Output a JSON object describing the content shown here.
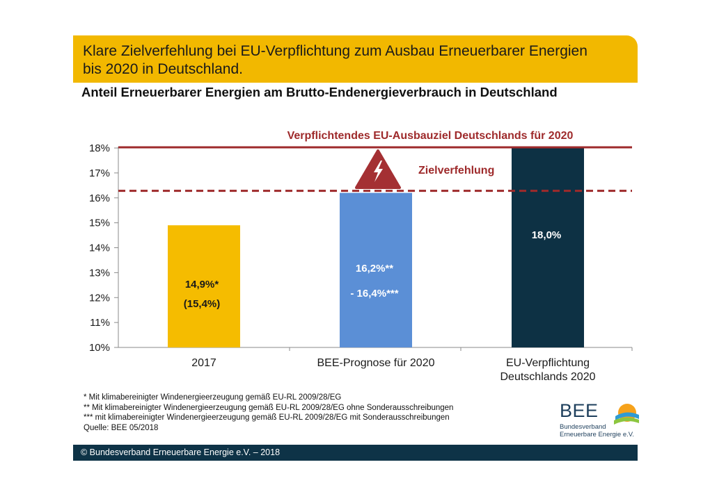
{
  "header": {
    "title_line1": "Klare Zielverfehlung bei EU-Verpflichtung zum Ausbau Erneuerbarer Energien",
    "title_line2": "bis 2020 in Deutschland.",
    "subtitle": "Anteil Erneuerbarer Energien am Brutto-Endenergieverbrauch in Deutschland"
  },
  "chart_data": {
    "type": "bar",
    "title": "Anteil Erneuerbarer Energien am Brutto-Endenergieverbrauch in Deutschland",
    "categories": [
      [
        "2017"
      ],
      [
        "BEE-Prognose für 2020"
      ],
      [
        "EU-Verpflichtung",
        "Deutschlands 2020"
      ]
    ],
    "values": [
      14.9,
      16.2,
      18.0
    ],
    "bar_colors": [
      "#f5bc00",
      "#5b8fd6",
      "#0d3144"
    ],
    "data_labels": [
      [
        "14,9%*",
        "(15,4%)"
      ],
      [
        "16,2%**",
        "- 16,4%***"
      ],
      [
        "18,0%"
      ]
    ],
    "label_colors": [
      "#1a1a1a",
      "#ffffff",
      "#ffffff"
    ],
    "yticks": [
      "10%",
      "11%",
      "12%",
      "13%",
      "14%",
      "15%",
      "16%",
      "17%",
      "18%"
    ],
    "ylim": [
      10,
      18
    ],
    "grid": false,
    "reference_lines": [
      {
        "value": 18.0,
        "style": "solid",
        "color": "#9e2a2b",
        "label": "Verpflichtendes EU-Ausbauziel Deutschlands für 2020"
      },
      {
        "value": 16.2,
        "style": "dashed",
        "color": "#9e2a2b",
        "label": ""
      }
    ],
    "annotation": {
      "text": "Zielverfehlung",
      "color": "#9e2a2b",
      "icon": "warning-lightning-icon"
    }
  },
  "footnotes": [
    "* Mit klimabereinigter Windenergieerzeugung gemäß EU-RL 2009/28/EG",
    "** Mit klimabereinigter Windenergieerzeugung gemäß EU-RL 2009/28/EG ohne Sonderausschreibungen",
    "*** mit klimabereinigter Windenergieerzeugung gemäß EU-RL 2009/28/EG mit Sonderausschreibungen",
    "Quelle: BEE 05/2018"
  ],
  "logo": {
    "name": "BEE",
    "line1": "Bundesverband",
    "line2": "Erneuerbare Energie e.V."
  },
  "footer": {
    "text": "© Bundesverband Erneuerbare Energie e.V. – 2018"
  }
}
